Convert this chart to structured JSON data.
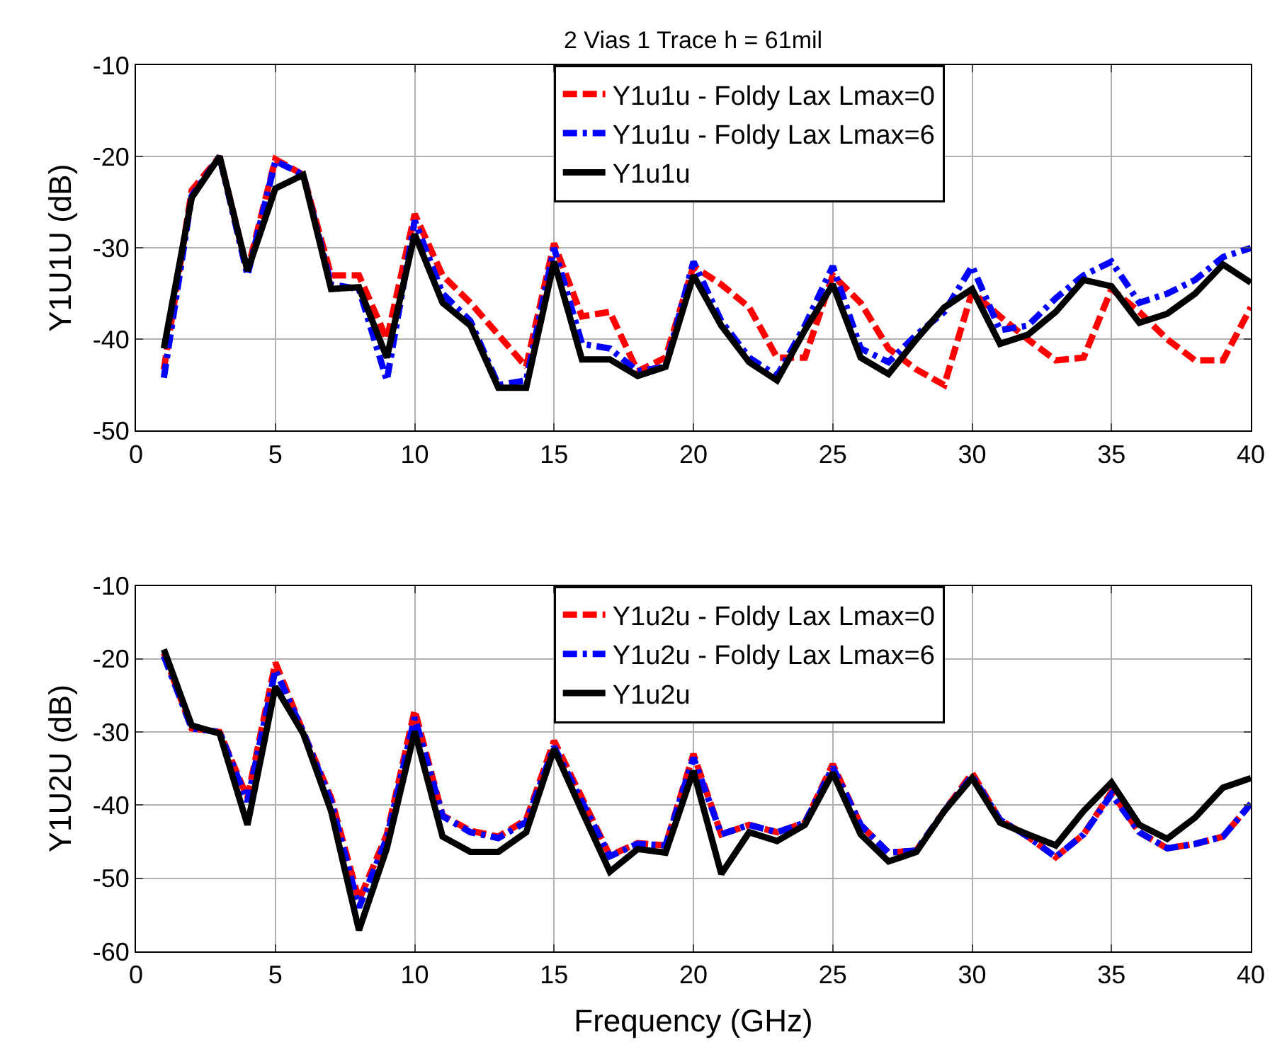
{
  "chart_data": [
    {
      "type": "line",
      "title": "2 Vias 1 Trace h = 61mil",
      "ylabel": "Y1U1U (dB)",
      "xlim": [
        0,
        40
      ],
      "xticks": [
        0,
        5,
        10,
        15,
        20,
        25,
        30,
        35,
        40
      ],
      "ylim": [
        -50,
        -10
      ],
      "yticks": [
        -50,
        -40,
        -30,
        -20,
        -10
      ],
      "grid": true,
      "legend": "top",
      "marker": "none",
      "x": [
        1,
        2,
        3,
        4,
        5,
        6,
        7,
        8,
        9,
        10,
        11,
        12,
        13,
        14,
        15,
        16,
        17,
        18,
        19,
        20,
        21,
        22,
        23,
        24,
        25,
        26,
        27,
        28,
        29,
        30,
        31,
        32,
        33,
        34,
        35,
        36,
        37,
        38,
        39,
        40
      ],
      "series": [
        {
          "name": "Y1u1u - Foldy Lax Lmax=0",
          "color": "#ff0000",
          "line_style": "dashed",
          "values": [
            -43.3,
            -23.7,
            -20,
            -32.5,
            -20.3,
            -22,
            -33,
            -33,
            -40,
            -26.3,
            -33,
            -36,
            -39.5,
            -43,
            -29.5,
            -37.5,
            -37,
            -43.5,
            -42,
            -32,
            -34,
            -36.5,
            -42,
            -42,
            -33,
            -36,
            -41,
            -43.3,
            -45,
            -34.8,
            -37.5,
            -40,
            -42.3,
            -42,
            -34.5,
            -37,
            -40,
            -42.3,
            -42.3,
            -36.5
          ]
        },
        {
          "name": "Y1u1u - Foldy Lax Lmax=6",
          "color": "#0000ff",
          "line_style": "dashdot",
          "values": [
            -44.2,
            -24.3,
            -20,
            -33,
            -20.5,
            -22,
            -34,
            -34.5,
            -44.5,
            -27,
            -35,
            -38,
            -45,
            -44.5,
            -30,
            -40.5,
            -41,
            -43.5,
            -43,
            -31.5,
            -38,
            -42,
            -44,
            -38.5,
            -32,
            -41,
            -42.5,
            -39.5,
            -37,
            -32,
            -39,
            -38.5,
            -35.5,
            -33,
            -31.5,
            -36,
            -35,
            -33.5,
            -31,
            -30
          ]
        },
        {
          "name": "Y1u1u",
          "color": "#000000",
          "line_style": "solid",
          "values": [
            -41,
            -24.5,
            -20,
            -32.5,
            -23.5,
            -22,
            -34.5,
            -34.3,
            -42,
            -28.5,
            -36,
            -38.5,
            -45.3,
            -45.3,
            -31.5,
            -42.2,
            -42.2,
            -44,
            -43,
            -33,
            -38.5,
            -42.5,
            -44.5,
            -39,
            -34,
            -42,
            -43.8,
            -40,
            -36.5,
            -34.5,
            -40.5,
            -39.5,
            -37,
            -33.5,
            -34.2,
            -38.2,
            -37.2,
            -35,
            -31.8,
            -33.8
          ]
        }
      ]
    },
    {
      "type": "line",
      "xlabel": "Frequency (GHz)",
      "ylabel": "Y1U2U (dB)",
      "xlim": [
        0,
        40
      ],
      "xticks": [
        0,
        5,
        10,
        15,
        20,
        25,
        30,
        35,
        40
      ],
      "ylim": [
        -60,
        -10
      ],
      "yticks": [
        -60,
        -50,
        -40,
        -30,
        -20,
        -10
      ],
      "grid": true,
      "legend": "top",
      "marker": "none",
      "x": [
        1,
        2,
        3,
        4,
        5,
        6,
        7,
        8,
        9,
        10,
        11,
        12,
        13,
        14,
        15,
        16,
        17,
        18,
        19,
        20,
        21,
        22,
        23,
        24,
        25,
        26,
        27,
        28,
        29,
        30,
        31,
        32,
        33,
        34,
        35,
        36,
        37,
        38,
        39,
        40
      ],
      "series": [
        {
          "name": "Y1u2u - Foldy Lax Lmax=0",
          "color": "#ff0000",
          "line_style": "dashed",
          "values": [
            -19.2,
            -29.5,
            -30,
            -39,
            -20.5,
            -30,
            -39,
            -53,
            -44,
            -27,
            -41.4,
            -43.5,
            -44.3,
            -42,
            -31.2,
            -39,
            -46.9,
            -45.2,
            -45.5,
            -33,
            -44,
            -42.7,
            -43.7,
            -42.4,
            -34.4,
            -42.7,
            -46.5,
            -46.2,
            -40.8,
            -35.6,
            -42,
            -44.3,
            -47.1,
            -44,
            -38.2,
            -43.7,
            -45.9,
            -45.3,
            -44.3,
            -39.8
          ]
        },
        {
          "name": "Y1u2u - Foldy Lax Lmax=6",
          "color": "#0000ff",
          "line_style": "dashdot",
          "values": [
            -19.6,
            -29.5,
            -30,
            -39.5,
            -21.5,
            -30,
            -39.5,
            -54,
            -44.5,
            -28,
            -41.5,
            -43.7,
            -44.5,
            -42.3,
            -32,
            -39.5,
            -47,
            -45.3,
            -45.5,
            -33.5,
            -44,
            -42.7,
            -43.7,
            -42.4,
            -34.8,
            -42.7,
            -46.5,
            -46.2,
            -40.8,
            -36,
            -42,
            -44.3,
            -47.1,
            -44,
            -38.5,
            -43.7,
            -45.9,
            -45.3,
            -44.3,
            -39.8
          ]
        },
        {
          "name": "Y1u2u",
          "color": "#000000",
          "line_style": "solid",
          "values": [
            -18.7,
            -29.1,
            -30.2,
            -42.7,
            -23.8,
            -30.2,
            -40.8,
            -57.1,
            -45.9,
            -29.9,
            -44.3,
            -46.4,
            -46.4,
            -43.7,
            -32.3,
            -40.8,
            -49.1,
            -46,
            -46.5,
            -35.3,
            -49.4,
            -43.7,
            -44.9,
            -42.7,
            -35.6,
            -44,
            -47.7,
            -46.4,
            -40.8,
            -36.3,
            -42.4,
            -44,
            -45.5,
            -40.8,
            -36.9,
            -42.7,
            -44.6,
            -41.7,
            -37.6,
            -36.3
          ]
        }
      ]
    }
  ]
}
